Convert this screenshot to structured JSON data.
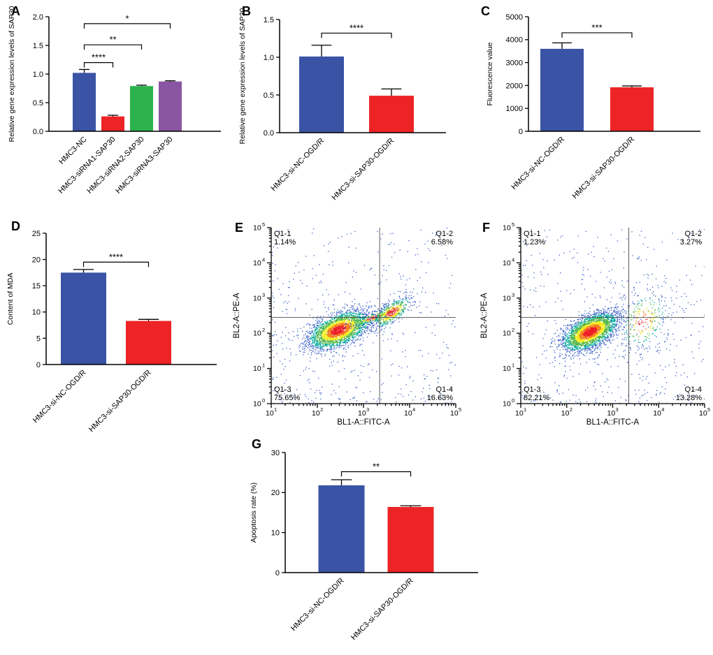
{
  "accent_colors": {
    "blue": "#3a53a4",
    "red": "#ec2426",
    "green": "#2bb24c",
    "purple": "#8a55a2"
  },
  "chart_data": [
    {
      "panel": "A",
      "type": "bar",
      "categories": [
        "HMC3-NC",
        "HMC3-siRNA1-SAP30",
        "HMC3-siRNA2-SAP30",
        "HMC3-siRNA3-SAP30"
      ],
      "values": [
        1.02,
        0.26,
        0.79,
        0.87
      ],
      "errors": [
        0.06,
        0.02,
        0.015,
        0.012
      ],
      "colors": [
        "#3a53a4",
        "#ec2426",
        "#2bb24c",
        "#8a55a2"
      ],
      "ylabel": "Relative gene expression levels of SAP30",
      "xlabel": "",
      "ylim": [
        0,
        2.0
      ],
      "yticks": [
        "0.0",
        "0.5",
        "1.0",
        "1.5",
        "2.0"
      ],
      "grid": false,
      "significance": [
        {
          "from": 0,
          "to": 1,
          "y": 1.2,
          "label": "****"
        },
        {
          "from": 0,
          "to": 2,
          "y": 1.51,
          "label": "**"
        },
        {
          "from": 0,
          "to": 3,
          "y": 1.88,
          "label": "*"
        }
      ]
    },
    {
      "panel": "B",
      "type": "bar",
      "categories": [
        "HMC3-si-NC-OGD/R",
        "HMC3-si-SAP30-OGD/R"
      ],
      "values": [
        1.01,
        0.49
      ],
      "errors": [
        0.15,
        0.09
      ],
      "colors": [
        "#3a53a4",
        "#ec2426"
      ],
      "ylabel": "Relative gene expression levels of SAP30",
      "xlabel": "",
      "ylim": [
        0,
        1.5
      ],
      "yticks": [
        "0.0",
        "0.5",
        "1.0",
        "1.5"
      ],
      "grid": false,
      "significance": [
        {
          "from": 0,
          "to": 1,
          "y": 1.32,
          "label": "****"
        }
      ]
    },
    {
      "panel": "C",
      "type": "bar",
      "categories": [
        "HMC3-si-NC-OGD/R",
        "HMC3-si-SAP30-OGD/R"
      ],
      "values": [
        3600,
        1920
      ],
      "errors": [
        260,
        60
      ],
      "colors": [
        "#3a53a4",
        "#ec2426"
      ],
      "ylabel": "Fluorescence value",
      "xlabel": "",
      "ylim": [
        0,
        5000
      ],
      "yticks": [
        "0",
        "1000",
        "2000",
        "3000",
        "4000",
        "5000"
      ],
      "grid": false,
      "significance": [
        {
          "from": 0,
          "to": 1,
          "y": 4300,
          "label": "***"
        }
      ]
    },
    {
      "panel": "D",
      "type": "bar",
      "categories": [
        "HMC3-si-NC-OGD/R",
        "HMC3-si-SAP30-OGD/R"
      ],
      "values": [
        17.5,
        8.3
      ],
      "errors": [
        0.6,
        0.3
      ],
      "colors": [
        "#3a53a4",
        "#ec2426"
      ],
      "ylabel": "Content of MDA",
      "xlabel": "",
      "ylim": [
        0,
        25
      ],
      "yticks": [
        "0",
        "5",
        "10",
        "15",
        "20",
        "25"
      ],
      "grid": false,
      "significance": [
        {
          "from": 0,
          "to": 1,
          "y": 19.5,
          "label": "****"
        }
      ]
    },
    {
      "panel": "E",
      "type": "scatter",
      "subtype": "flow-cytometry-density",
      "xlabel": "BL1-A::FITC-A",
      "ylabel": "BL2-A::PE-A",
      "x_decades": [
        1,
        5
      ],
      "y_decades": [
        0,
        5
      ],
      "gate_x": 3.35,
      "gate_y": 2.45,
      "quadrants": [
        {
          "name": "Q1-1",
          "pct": "1.14%",
          "corner": "top-left"
        },
        {
          "name": "Q1-2",
          "pct": "6.58%",
          "corner": "top-right"
        },
        {
          "name": "Q1-3",
          "pct": "75.65%",
          "corner": "bottom-left"
        },
        {
          "name": "Q1-4",
          "pct": "16.63%",
          "corner": "bottom-right"
        }
      ],
      "seed": 1234,
      "clusters": [
        {
          "type": "noise",
          "n": 450
        },
        {
          "cx": 2.45,
          "cy": 2.1,
          "sx": 0.33,
          "sy": 0.27,
          "corr": 0.5,
          "n": 2700
        },
        {
          "cx": 3.2,
          "cy": 2.45,
          "sx": 0.3,
          "sy": 0.15,
          "corr": 0.85,
          "n": 220,
          "cs": 1.3
        },
        {
          "cx": 3.6,
          "cy": 2.6,
          "sx": 0.22,
          "sy": 0.22,
          "corr": 0.7,
          "n": 520,
          "cs": 1.1
        }
      ]
    },
    {
      "panel": "F",
      "type": "scatter",
      "subtype": "flow-cytometry-density",
      "xlabel": "BL1-A::FITC-A",
      "ylabel": "BL2-A::PE-A",
      "x_decades": [
        1,
        5
      ],
      "y_decades": [
        0,
        5
      ],
      "gate_x": 3.35,
      "gate_y": 2.45,
      "quadrants": [
        {
          "name": "Q1-1",
          "pct": "1.23%",
          "corner": "top-left"
        },
        {
          "name": "Q1-2",
          "pct": "3.27%",
          "corner": "top-right"
        },
        {
          "name": "Q1-3",
          "pct": "82.21%",
          "corner": "bottom-left"
        },
        {
          "name": "Q1-4",
          "pct": "13.28%",
          "corner": "bottom-right"
        }
      ],
      "seed": 99,
      "clusters": [
        {
          "type": "noise",
          "n": 480
        },
        {
          "cx": 2.5,
          "cy": 2.05,
          "sx": 0.3,
          "sy": 0.27,
          "corr": 0.55,
          "n": 2900
        },
        {
          "cx": 3.65,
          "cy": 2.35,
          "sx": 0.33,
          "sy": 0.5,
          "corr": 0.25,
          "n": 320,
          "cs": 1.4
        }
      ]
    },
    {
      "panel": "G",
      "type": "bar",
      "categories": [
        "HMC3-si-NC-OGD/R",
        "HMC3-si-SAP30-OGD/R"
      ],
      "values": [
        21.8,
        16.4
      ],
      "errors": [
        1.4,
        0.3
      ],
      "colors": [
        "#3a53a4",
        "#ec2426"
      ],
      "ylabel": "Apoptosis rate (%)",
      "xlabel": "",
      "ylim": [
        0,
        30
      ],
      "yticks": [
        "0",
        "10",
        "20",
        "30"
      ],
      "grid": false,
      "significance": [
        {
          "from": 0,
          "to": 1,
          "y": 25.2,
          "label": "**"
        }
      ]
    }
  ]
}
